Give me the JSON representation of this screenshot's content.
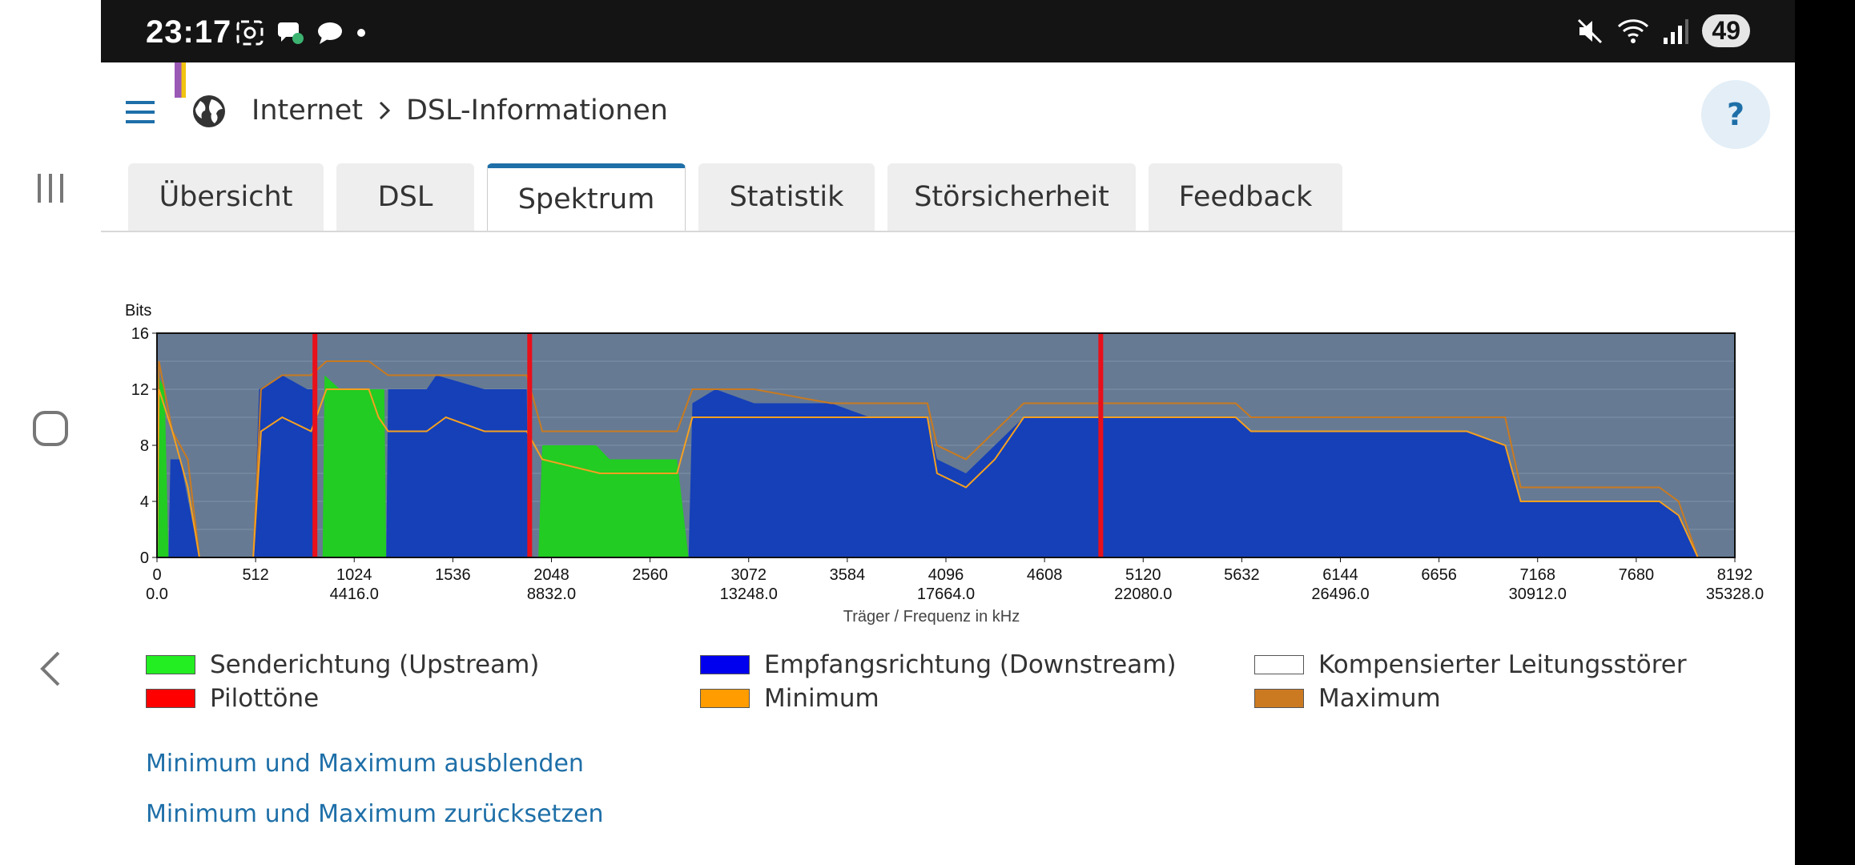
{
  "status_bar": {
    "time": "23:17",
    "battery": "49"
  },
  "header": {
    "breadcrumb": [
      "Internet",
      "DSL-Informationen"
    ],
    "help_label": "?"
  },
  "tabs": [
    {
      "label": "Übersicht"
    },
    {
      "label": "DSL"
    },
    {
      "label": "Spektrum",
      "active": true
    },
    {
      "label": "Statistik"
    },
    {
      "label": "Störsicherheit"
    },
    {
      "label": "Feedback"
    }
  ],
  "chart_data": {
    "type": "area",
    "ylabel": "Bits",
    "xlabel": "Träger / Frequenz in kHz",
    "ylim": [
      0,
      16
    ],
    "xlim": [
      0,
      8192
    ],
    "yticks": [
      0,
      4,
      8,
      12,
      16
    ],
    "xticks": [
      0,
      512,
      1024,
      1536,
      2048,
      2560,
      3072,
      3584,
      4096,
      4608,
      5120,
      5632,
      6144,
      6656,
      7168,
      7680,
      8192
    ],
    "freq_ticks": [
      {
        "x": 0,
        "label": "0.0"
      },
      {
        "x": 1024,
        "label": "4416.0"
      },
      {
        "x": 2048,
        "label": "8832.0"
      },
      {
        "x": 3072,
        "label": "13248.0"
      },
      {
        "x": 4096,
        "label": "17664.0"
      },
      {
        "x": 5120,
        "label": "22080.0"
      },
      {
        "x": 6144,
        "label": "26496.0"
      },
      {
        "x": 7168,
        "label": "30912.0"
      },
      {
        "x": 8192,
        "label": "35328.0"
      }
    ],
    "pilot_tones": [
      820,
      1935,
      4900
    ],
    "series": [
      {
        "name": "Senderichtung (Upstream)",
        "color": "#22cc22",
        "points": [
          [
            0,
            0
          ],
          [
            5,
            13
          ],
          [
            40,
            12
          ],
          [
            60,
            0
          ],
          [
            860,
            0
          ],
          [
            870,
            13
          ],
          [
            950,
            12
          ],
          [
            1180,
            12
          ],
          [
            1190,
            0
          ],
          [
            1980,
            0
          ],
          [
            2000,
            8
          ],
          [
            2100,
            8
          ],
          [
            2280,
            8
          ],
          [
            2350,
            7
          ],
          [
            2700,
            7
          ],
          [
            2760,
            0
          ],
          [
            8192,
            0
          ]
        ]
      },
      {
        "name": "Empfangsrichtung (Downstream)",
        "color": "#1540b8",
        "points": [
          [
            60,
            0
          ],
          [
            70,
            7
          ],
          [
            120,
            7
          ],
          [
            220,
            0
          ],
          [
            500,
            0
          ],
          [
            530,
            12
          ],
          [
            650,
            13
          ],
          [
            780,
            12
          ],
          [
            810,
            12
          ],
          [
            820,
            0
          ],
          [
            1190,
            0
          ],
          [
            1200,
            12
          ],
          [
            1400,
            12
          ],
          [
            1450,
            13
          ],
          [
            1700,
            12
          ],
          [
            1920,
            12
          ],
          [
            1930,
            0
          ],
          [
            2760,
            0
          ],
          [
            2780,
            11
          ],
          [
            2900,
            12
          ],
          [
            3100,
            11
          ],
          [
            3500,
            11
          ],
          [
            3700,
            10
          ],
          [
            4000,
            10
          ],
          [
            4050,
            7
          ],
          [
            4200,
            6
          ],
          [
            4350,
            8
          ],
          [
            4500,
            10
          ],
          [
            4700,
            10
          ],
          [
            5600,
            10
          ],
          [
            5680,
            9
          ],
          [
            6000,
            9
          ],
          [
            6200,
            9
          ],
          [
            6800,
            9
          ],
          [
            7000,
            8
          ],
          [
            7080,
            4
          ],
          [
            7500,
            4
          ],
          [
            7650,
            4
          ],
          [
            7800,
            4
          ],
          [
            7900,
            3
          ],
          [
            8000,
            0
          ],
          [
            8192,
            0
          ]
        ]
      }
    ],
    "minimum": {
      "name": "Minimum",
      "color": "#f5a020",
      "points": [
        [
          0,
          0
        ],
        [
          10,
          12
        ],
        [
          80,
          9
        ],
        [
          160,
          5
        ],
        [
          220,
          0
        ],
        [
          500,
          0
        ],
        [
          540,
          9
        ],
        [
          650,
          10
        ],
        [
          800,
          9
        ],
        [
          880,
          12
        ],
        [
          1100,
          12
        ],
        [
          1150,
          10
        ],
        [
          1200,
          9
        ],
        [
          1400,
          9
        ],
        [
          1500,
          10
        ],
        [
          1700,
          9
        ],
        [
          1920,
          9
        ],
        [
          2000,
          7
        ],
        [
          2300,
          6
        ],
        [
          2700,
          6
        ],
        [
          2780,
          10
        ],
        [
          3100,
          10
        ],
        [
          3500,
          10
        ],
        [
          3700,
          10
        ],
        [
          4000,
          10
        ],
        [
          4050,
          6
        ],
        [
          4200,
          5
        ],
        [
          4350,
          7
        ],
        [
          4500,
          10
        ],
        [
          5600,
          10
        ],
        [
          5680,
          9
        ],
        [
          6800,
          9
        ],
        [
          7000,
          8
        ],
        [
          7080,
          4
        ],
        [
          7800,
          4
        ],
        [
          7900,
          3
        ],
        [
          8000,
          0
        ]
      ]
    },
    "maximum": {
      "name": "Maximum",
      "color": "#c97a20",
      "points": [
        [
          0,
          0
        ],
        [
          10,
          14
        ],
        [
          80,
          9
        ],
        [
          160,
          7
        ],
        [
          220,
          0
        ],
        [
          500,
          0
        ],
        [
          540,
          12
        ],
        [
          650,
          13
        ],
        [
          800,
          13
        ],
        [
          880,
          14
        ],
        [
          1100,
          14
        ],
        [
          1200,
          13
        ],
        [
          1400,
          13
        ],
        [
          1500,
          13
        ],
        [
          1700,
          13
        ],
        [
          1920,
          13
        ],
        [
          2000,
          9
        ],
        [
          2300,
          9
        ],
        [
          2700,
          9
        ],
        [
          2780,
          12
        ],
        [
          3100,
          12
        ],
        [
          3500,
          11
        ],
        [
          3700,
          11
        ],
        [
          4000,
          11
        ],
        [
          4050,
          8
        ],
        [
          4200,
          7
        ],
        [
          4350,
          9
        ],
        [
          4500,
          11
        ],
        [
          5600,
          11
        ],
        [
          5680,
          10
        ],
        [
          6800,
          10
        ],
        [
          7000,
          10
        ],
        [
          7080,
          5
        ],
        [
          7800,
          5
        ],
        [
          7900,
          4
        ],
        [
          8000,
          0
        ]
      ]
    }
  },
  "legend": [
    {
      "label": "Senderichtung (Upstream)",
      "color": "#22ee22"
    },
    {
      "label": "Empfangsrichtung (Downstream)",
      "color": "#0000ee"
    },
    {
      "label": "Kompensierter Leitungsstörer",
      "color": "#ffffff"
    },
    {
      "label": "Pilottöne",
      "color": "#ff0000"
    },
    {
      "label": "Minimum",
      "color": "#ff9c00"
    },
    {
      "label": "Maximum",
      "color": "#cc7a22"
    }
  ],
  "links": {
    "hide_minmax": "Minimum und Maximum ausblenden",
    "reset_minmax": "Minimum und Maximum zurücksetzen"
  }
}
